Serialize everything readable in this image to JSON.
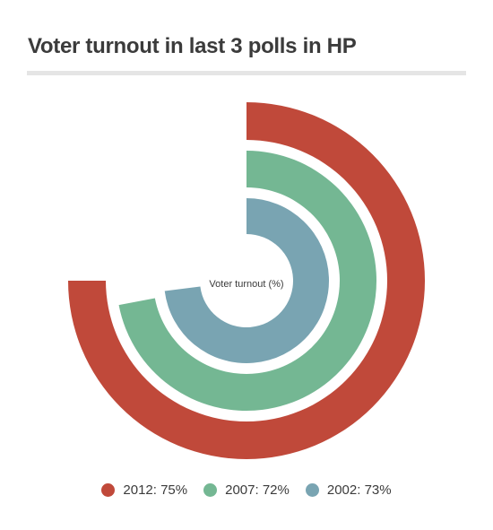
{
  "title": "Voter turnout in last 3 polls in HP",
  "chart_data": {
    "type": "radial-bar",
    "center_label": "Voter turnout (%)",
    "max_value": 100,
    "series": [
      {
        "name": "2012",
        "value": 75,
        "color": "#c0493a",
        "legend_text": "2012: 75%"
      },
      {
        "name": "2007",
        "value": 72,
        "color": "#74b793",
        "legend_text": "2007: 72%"
      },
      {
        "name": "2002",
        "value": 73,
        "color": "#79a4b2",
        "legend_text": "2002: 73%"
      }
    ],
    "legend_position": "bottom"
  }
}
